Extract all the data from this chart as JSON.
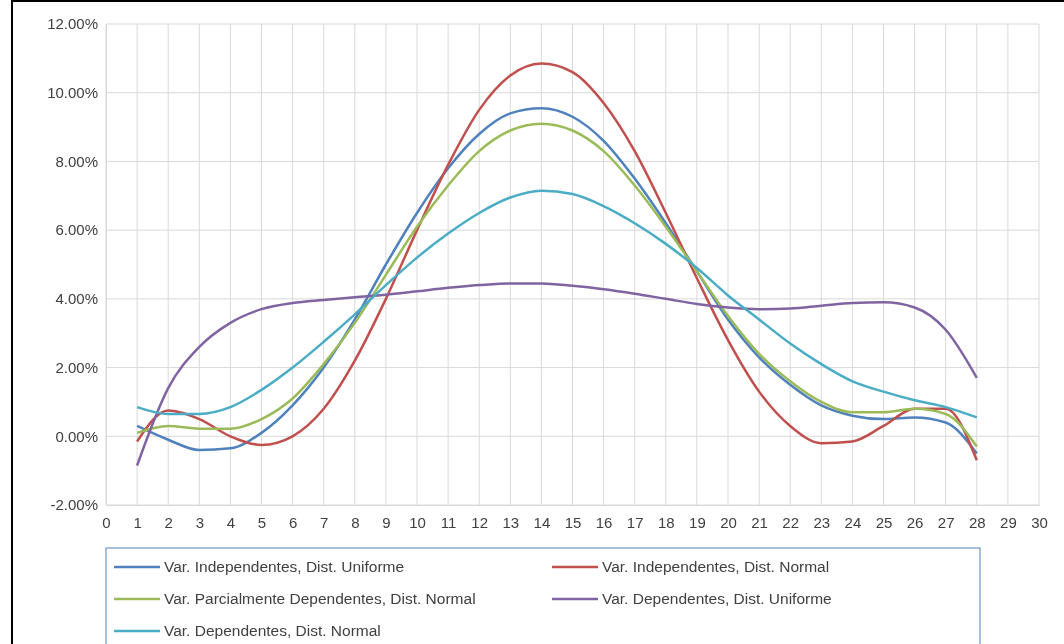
{
  "chart_data": {
    "type": "line",
    "x": [
      1,
      2,
      3,
      4,
      5,
      6,
      7,
      8,
      9,
      10,
      11,
      12,
      13,
      14,
      15,
      16,
      17,
      18,
      19,
      20,
      21,
      22,
      23,
      24,
      25,
      26,
      27,
      28
    ],
    "series": [
      {
        "name": "Var. Independentes, Dist. Uniforme",
        "color": "#4f81bd",
        "values": [
          0.3,
          -0.1,
          -0.4,
          -0.35,
          0.1,
          0.9,
          2.0,
          3.4,
          5.0,
          6.5,
          7.8,
          8.8,
          9.4,
          9.55,
          9.3,
          8.6,
          7.5,
          6.2,
          4.8,
          3.4,
          2.3,
          1.5,
          0.9,
          0.6,
          0.5,
          0.55,
          0.4,
          -0.5
        ]
      },
      {
        "name": "Var. Independentes, Dist. Normal",
        "color": "#c0504d",
        "values": [
          -0.15,
          0.75,
          0.5,
          0.0,
          -0.25,
          0.0,
          0.8,
          2.2,
          4.0,
          6.0,
          7.9,
          9.5,
          10.5,
          10.85,
          10.6,
          9.7,
          8.3,
          6.5,
          4.6,
          2.8,
          1.3,
          0.3,
          -0.2,
          -0.15,
          0.3,
          0.8,
          0.8,
          -0.7
        ]
      },
      {
        "name": "Var. Parcialmente Dependentes, Dist. Normal",
        "color": "#9bbb59",
        "values": [
          0.1,
          0.3,
          0.22,
          0.22,
          0.5,
          1.1,
          2.1,
          3.3,
          4.7,
          6.1,
          7.3,
          8.3,
          8.9,
          9.1,
          8.9,
          8.3,
          7.3,
          6.1,
          4.8,
          3.5,
          2.4,
          1.6,
          1.0,
          0.7,
          0.7,
          0.8,
          0.65,
          -0.3
        ]
      },
      {
        "name": "Var. Dependentes, Dist. Uniforme",
        "color": "#8064a2",
        "values": [
          -0.85,
          1.4,
          2.6,
          3.3,
          3.7,
          3.88,
          3.97,
          4.05,
          4.12,
          4.22,
          4.32,
          4.4,
          4.45,
          4.45,
          4.38,
          4.28,
          4.15,
          4.0,
          3.85,
          3.75,
          3.7,
          3.72,
          3.8,
          3.88,
          3.9,
          3.75,
          3.1,
          1.7
        ]
      },
      {
        "name": "Var. Dependentes, Dist. Normal",
        "color": "#4bacc6",
        "values": [
          0.85,
          0.65,
          0.65,
          0.85,
          1.35,
          2.0,
          2.75,
          3.55,
          4.4,
          5.2,
          5.9,
          6.5,
          6.95,
          7.15,
          7.05,
          6.7,
          6.2,
          5.6,
          4.9,
          4.1,
          3.4,
          2.7,
          2.1,
          1.6,
          1.3,
          1.05,
          0.85,
          0.55
        ]
      }
    ],
    "xlim": [
      0,
      30
    ],
    "xticks": [
      0,
      1,
      2,
      3,
      4,
      5,
      6,
      7,
      8,
      9,
      10,
      11,
      12,
      13,
      14,
      15,
      16,
      17,
      18,
      19,
      20,
      21,
      22,
      23,
      24,
      25,
      26,
      27,
      28,
      29,
      30
    ],
    "ylim": [
      -2,
      12
    ],
    "yticks": [
      {
        "value": -2,
        "label": "-2.00%"
      },
      {
        "value": 0,
        "label": "0.00%"
      },
      {
        "value": 2,
        "label": "2.00%"
      },
      {
        "value": 4,
        "label": "4.00%"
      },
      {
        "value": 6,
        "label": "6.00%"
      },
      {
        "value": 8,
        "label": "8.00%"
      },
      {
        "value": 10,
        "label": "10.00%"
      },
      {
        "value": 12,
        "label": "12.00%"
      }
    ],
    "grid": true,
    "legend": "bottom",
    "marker": "none",
    "line_style": "solid"
  }
}
